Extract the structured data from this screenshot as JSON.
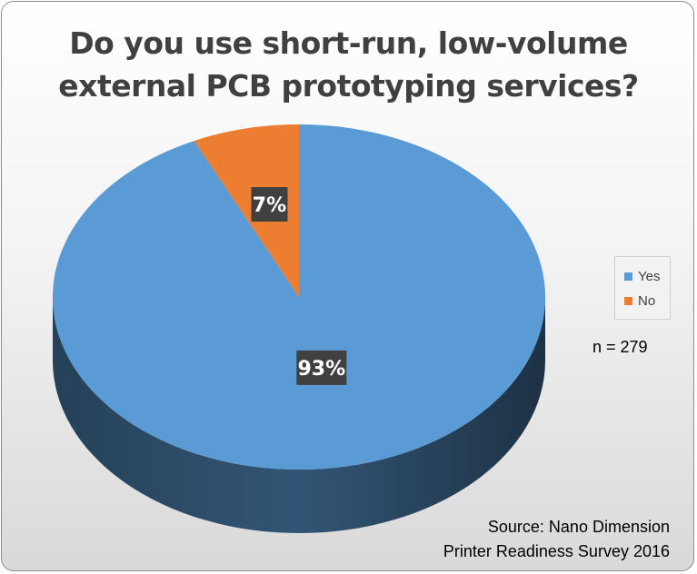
{
  "chart_data": {
    "type": "pie",
    "title": "Do you use short-run, low-volume external PCB prototyping services?",
    "title_lines": [
      "Do you use short-run, low-volume",
      "external PCB prototyping services?"
    ],
    "categories": [
      "Yes",
      "No"
    ],
    "values": [
      93,
      7
    ],
    "data_labels": [
      "93%",
      "7%"
    ],
    "colors": [
      "#5b9bd5",
      "#ed7d31"
    ],
    "legend_position": "right",
    "style": "3d"
  },
  "annotations": {
    "sample_size": "n = 279",
    "source_lines": [
      "Source: Nano Dimension",
      "Printer Readiness Survey 2016"
    ]
  }
}
